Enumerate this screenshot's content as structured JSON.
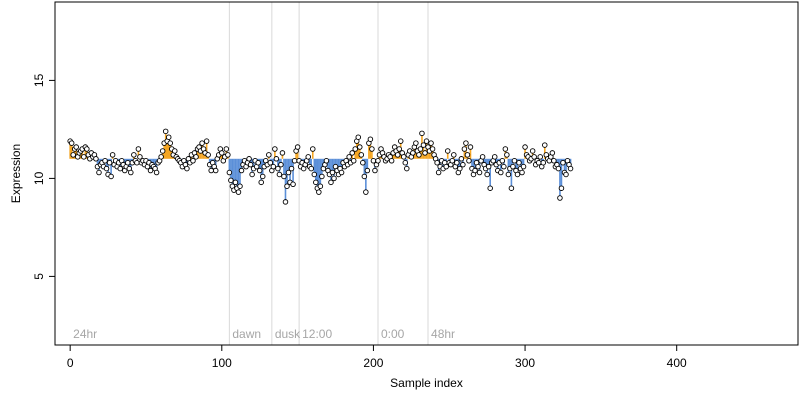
{
  "chart_data": {
    "type": "scatter",
    "title": "",
    "xlabel": "Sample index",
    "ylabel": "Expression",
    "xlim": [
      -10,
      480
    ],
    "ylim": [
      1.5,
      19.0
    ],
    "x_ticks": [
      "0",
      "100",
      "200",
      "300",
      "400"
    ],
    "y_ticks": [
      "5",
      "10",
      "15"
    ],
    "baseline": 11.0,
    "colors": {
      "above": "#f5a623",
      "below": "#5b8fd8",
      "point_fill": "#ffffff",
      "point_stroke": "#000000",
      "annotation_line": "#d9d9d9",
      "annotation_text": "#a6a6a6"
    },
    "annotations": [
      {
        "label": "24hr",
        "x": 0,
        "line": false
      },
      {
        "label": "dawn",
        "x": 105,
        "line": true
      },
      {
        "label": "dusk",
        "x": 133,
        "line": true
      },
      {
        "label": "12:00",
        "x": 151,
        "line": true
      },
      {
        "label": "0:00",
        "x": 203,
        "line": true
      },
      {
        "label": "48hr",
        "x": 236,
        "line": true
      }
    ],
    "y": [
      11.9,
      11.8,
      11.2,
      11.5,
      11.6,
      11.1,
      11.3,
      11.4,
      11.5,
      11.1,
      11.6,
      11.5,
      11.2,
      11.0,
      11.3,
      11.1,
      11.2,
      11.0,
      10.6,
      10.3,
      10.7,
      10.8,
      10.6,
      10.9,
      10.5,
      10.2,
      10.8,
      10.1,
      11.2,
      10.7,
      10.9,
      10.6,
      10.8,
      10.5,
      10.9,
      10.7,
      10.4,
      10.6,
      10.8,
      10.5,
      10.3,
      10.8,
      11.2,
      10.9,
      10.8,
      11.5,
      11.1,
      10.8,
      10.9,
      10.7,
      10.9,
      10.6,
      10.8,
      10.4,
      10.7,
      10.6,
      10.5,
      10.3,
      10.8,
      10.9,
      11.1,
      11.4,
      11.8,
      12.4,
      11.9,
      12.1,
      11.8,
      11.5,
      11.2,
      11.4,
      11.1,
      11.0,
      10.9,
      10.8,
      10.6,
      10.9,
      10.7,
      10.5,
      11.0,
      10.8,
      11.2,
      10.9,
      11.3,
      11.1,
      11.5,
      11.6,
      11.4,
      11.8,
      11.5,
      11.3,
      11.9,
      11.2,
      10.7,
      10.4,
      10.8,
      10.6,
      10.4,
      11.0,
      11.2,
      11.5,
      11.3,
      10.9,
      11.1,
      11.5,
      11.2,
      10.3,
      9.9,
      9.6,
      9.4,
      9.8,
      9.5,
      9.3,
      9.6,
      10.4,
      10.7,
      10.9,
      10.6,
      10.8,
      11.0,
      10.7,
      10.2,
      10.5,
      10.9,
      10.6,
      10.8,
      10.4,
      9.8,
      10.1,
      10.6,
      10.9,
      10.7,
      11.2,
      10.8,
      10.4,
      10.6,
      11.5,
      11.0,
      10.5,
      10.2,
      10.7,
      11.3,
      10.1,
      8.8,
      9.6,
      10.3,
      9.8,
      10.5,
      9.7,
      10.9,
      11.4,
      11.6,
      10.9,
      10.6,
      10.8,
      10.5,
      10.7,
      10.9,
      11.1,
      10.6,
      10.5,
      11.5,
      10.2,
      9.8,
      9.5,
      9.3,
      9.6,
      10.1,
      10.5,
      10.7,
      10.9,
      10.4,
      10.2,
      9.8,
      10.3,
      10.0,
      10.6,
      10.4,
      10.2,
      10.5,
      10.3,
      10.8,
      10.6,
      10.9,
      10.7,
      11.1,
      10.8,
      11.3,
      10.9,
      11.5,
      11.9,
      12.1,
      11.6,
      11.2,
      10.8,
      10.1,
      9.3,
      10.4,
      11.8,
      12.0,
      11.5,
      10.9,
      10.4,
      10.7,
      10.9,
      11.2,
      11.5,
      11.3,
      11.1,
      10.9,
      11.0,
      11.2,
      11.1,
      10.9,
      11.3,
      11.6,
      11.4,
      11.2,
      11.5,
      11.9,
      11.3,
      11.1,
      10.8,
      10.5,
      11.2,
      11.4,
      11.1,
      11.3,
      11.6,
      11.8,
      11.4,
      11.2,
      11.5,
      12.3,
      11.7,
      11.3,
      11.9,
      11.6,
      11.4,
      11.8,
      11.5,
      11.2,
      11.0,
      10.8,
      10.3,
      10.6,
      10.9,
      10.5,
      10.8,
      10.6,
      11.4,
      10.8,
      10.7,
      10.9,
      11.2,
      10.6,
      10.8,
      10.3,
      10.5,
      11.0,
      10.7,
      11.5,
      11.8,
      11.2,
      10.9,
      11.6,
      10.5,
      10.2,
      10.4,
      10.8,
      10.6,
      10.3,
      10.9,
      11.1,
      10.7,
      10.5,
      10.2,
      10.6,
      9.5,
      10.8,
      10.9,
      11.1,
      10.7,
      10.4,
      10.8,
      10.3,
      10.9,
      10.6,
      11.5,
      11.2,
      10.2,
      10.5,
      9.5,
      10.6,
      10.9,
      10.4,
      10.2,
      10.8,
      10.5,
      10.3,
      10.6,
      11.6,
      11.2,
      11.1,
      10.9,
      11.0,
      11.4,
      11.1,
      10.7,
      10.9,
      10.8,
      11.1,
      10.6,
      10.8,
      11.7,
      11.2,
      11.0,
      10.9,
      11.1,
      11.3
    ],
    "tail_y": [
      10.9,
      10.6,
      10.7,
      10.5,
      9.0,
      9.5,
      10.8,
      10.3,
      10.2,
      10.9,
      10.7,
      10.5
    ]
  }
}
